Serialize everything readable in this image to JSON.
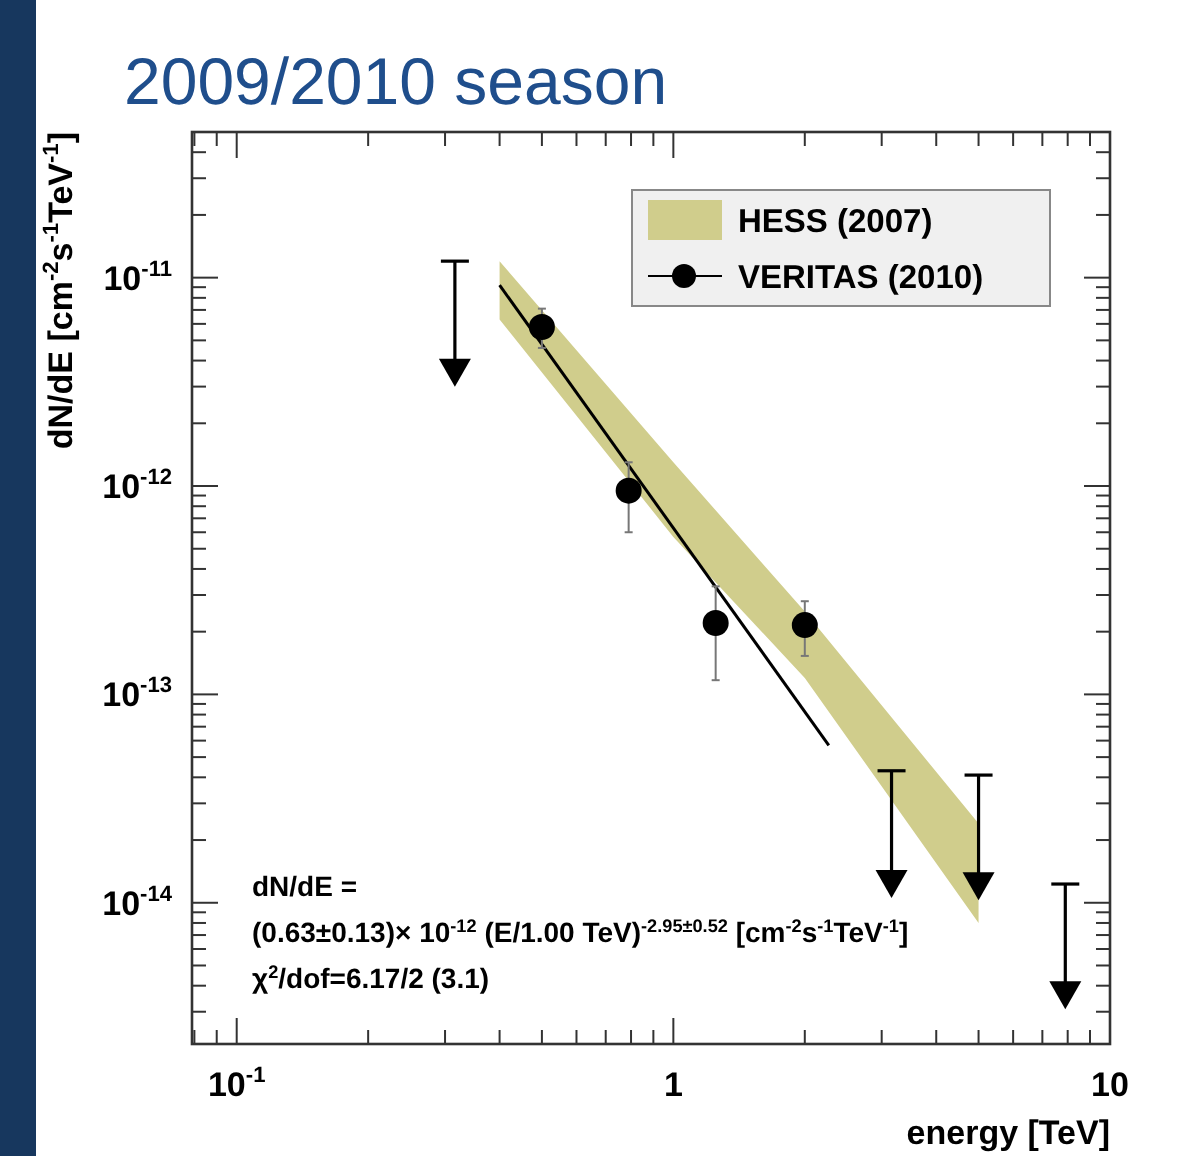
{
  "chart_data": {
    "type": "scatter",
    "title": "2009/2010 season",
    "xlabel": "energy [TeV]",
    "ylabel": "dN/dE [cm$^{-2}$s$^{-1}$TeV$^{-1}$]",
    "log": "xy",
    "legend": "top right",
    "grid": false,
    "xlim": [
      0.079,
      10
    ],
    "ylim": [
      2.1e-15,
      5e-11
    ],
    "xticks": [
      {
        "value": 0.08,
        "label": null
      },
      {
        "value": 0.09,
        "label": null
      },
      {
        "value": 0.1,
        "label": "10$^{-1}$"
      },
      {
        "value": 0.2,
        "label": null
      },
      {
        "value": 0.3,
        "label": null
      },
      {
        "value": 0.4,
        "label": null
      },
      {
        "value": 0.5,
        "label": null
      },
      {
        "value": 0.6,
        "label": null
      },
      {
        "value": 0.7,
        "label": null
      },
      {
        "value": 0.8,
        "label": null
      },
      {
        "value": 0.9,
        "label": null
      },
      1,
      {
        "value": 2,
        "label": null
      },
      {
        "value": 3,
        "label": null
      },
      {
        "value": 4,
        "label": null
      },
      {
        "value": 5,
        "label": null
      },
      {
        "value": 6,
        "label": null
      },
      {
        "value": 7,
        "label": null
      },
      {
        "value": 8,
        "label": null
      },
      {
        "value": 9,
        "label": null
      },
      10
    ],
    "yticks": [
      {
        "value": 3e-15,
        "label": null
      },
      {
        "value": 4e-15,
        "label": null
      },
      {
        "value": 5e-15,
        "label": null
      },
      {
        "value": 6e-15,
        "label": null
      },
      {
        "value": 7e-15,
        "label": null
      },
      {
        "value": 8e-15,
        "label": null
      },
      {
        "value": 9e-15,
        "label": null
      },
      {
        "value": 1e-14,
        "label": "10$^{-14}$"
      },
      {
        "value": 2e-14,
        "label": null
      },
      {
        "value": 3e-14,
        "label": null
      },
      {
        "value": 4e-14,
        "label": null
      },
      {
        "value": 5e-14,
        "label": null
      },
      {
        "value": 6e-14,
        "label": null
      },
      {
        "value": 7e-14,
        "label": null
      },
      {
        "value": 8e-14,
        "label": null
      },
      {
        "value": 9e-14,
        "label": null
      },
      {
        "value": 1e-13,
        "label": "10$^{-13}$"
      },
      {
        "value": 2e-13,
        "label": null
      },
      {
        "value": 3e-13,
        "label": null
      },
      {
        "value": 4e-13,
        "label": null
      },
      {
        "value": 5e-13,
        "label": null
      },
      {
        "value": 6e-13,
        "label": null
      },
      {
        "value": 7e-13,
        "label": null
      },
      {
        "value": 8e-13,
        "label": null
      },
      {
        "value": 9e-13,
        "label": null
      },
      {
        "value": 1e-12,
        "label": "10$^{-12}$"
      },
      {
        "value": 2e-12,
        "label": null
      },
      {
        "value": 3e-12,
        "label": null
      },
      {
        "value": 4e-12,
        "label": null
      },
      {
        "value": 5e-12,
        "label": null
      },
      {
        "value": 6e-12,
        "label": null
      },
      {
        "value": 7e-12,
        "label": null
      },
      {
        "value": 8e-12,
        "label": null
      },
      {
        "value": 9e-12,
        "label": null
      },
      {
        "value": 1e-11,
        "label": "10$^{-11}$"
      },
      {
        "value": 2e-11,
        "label": null
      },
      {
        "value": 3e-11,
        "label": null
      },
      {
        "value": 4e-11,
        "label": null
      }
    ],
    "series": [
      {
        "name": "HESS (2007)",
        "type": "area",
        "color": "#d0cd8c",
        "x": [
          0.4,
          1,
          2,
          5
        ],
        "values": [
          null,
          null,
          null,
          null
        ],
        "lower": [
          6.3e-12,
          5.7e-13,
          1.2e-13,
          8e-15
        ],
        "upper": [
          1.2e-11,
          1.3e-12,
          2.5e-13,
          2.4e-14
        ]
      },
      {
        "type": "line",
        "color": "#000000",
        "x": [
          0.4,
          2.27
        ],
        "values": [
          9.2e-12,
          5.7e-14
        ]
      },
      {
        "name": "VERITAS (2010)",
        "type": "scatter",
        "marker": "circle",
        "color": "#000000",
        "x": [
          0.5,
          0.79,
          1.25,
          2.0
        ],
        "values": [
          5.8e-12,
          9.5e-13,
          2.2e-13,
          2.15e-13
        ],
        "errors": [
          [
            4.6e-12,
            7.1e-12
          ],
          [
            6e-13,
            1.3e-12
          ],
          [
            1.17e-13,
            3.3e-13
          ],
          [
            1.53e-13,
            2.8e-13
          ]
        ]
      },
      {
        "marker": "triangle",
        "color": "#000000",
        "x": [
          0.316,
          3.16,
          5.0,
          7.9
        ],
        "values": [
          3.5e-12,
          1.23e-14,
          1.2e-14,
          3.6e-15
        ],
        "errors": [
          [
            3.5e-12,
            1.2e-11
          ],
          [
            1.23e-14,
            4.3e-14
          ],
          [
            1.2e-14,
            4.1e-14
          ],
          [
            3.6e-15,
            1.23e-14
          ]
        ]
      }
    ],
    "annotations": [
      "dN/dE =",
      "(0.63±0.13)× 10$^{-12}$ (E/1.00 TeV)$^{-2.95±0.52}$ [cm$^{-2}$s$^{-1}$TeV$^{-1}$]",
      "χ$^{2}$/dof=6.17/2 (3.1)"
    ]
  }
}
